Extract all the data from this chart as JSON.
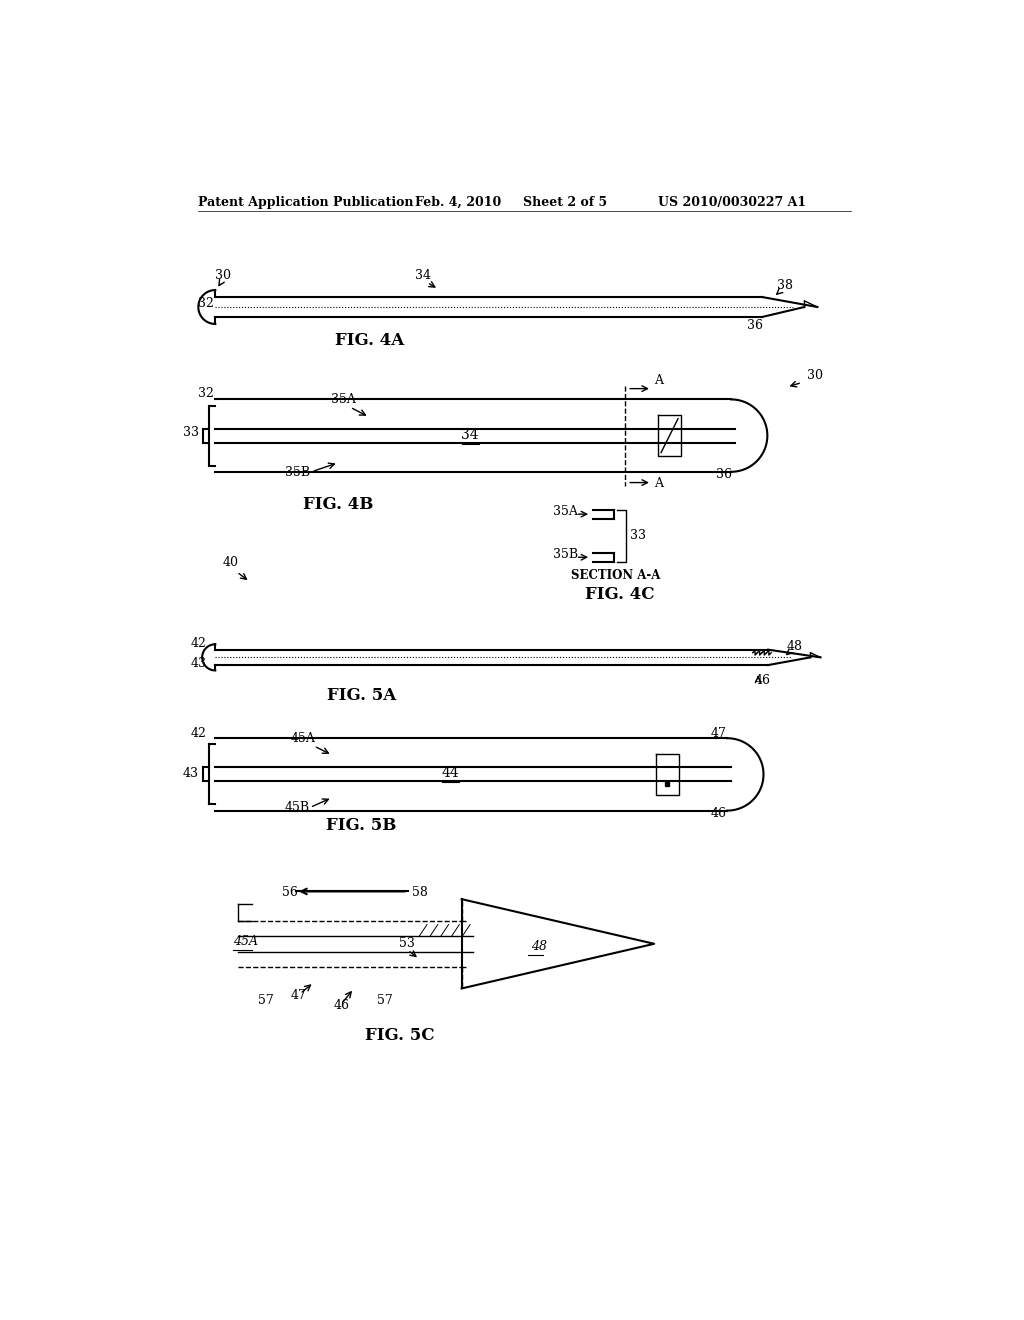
{
  "bg_color": "#ffffff",
  "header_text": "Patent Application Publication",
  "header_date": "Feb. 4, 2010",
  "header_sheet": "Sheet 2 of 5",
  "header_patent": "US 2010/0030227 A1",
  "figures": {
    "fig4a_label": "FIG. 4A",
    "fig4b_label": "FIG. 4B",
    "fig4c_label": "FIG. 4C",
    "fig5a_label": "FIG. 5A",
    "fig5b_label": "FIG. 5B",
    "fig5c_label": "FIG. 5C",
    "section_label": "SECTION A-A"
  }
}
